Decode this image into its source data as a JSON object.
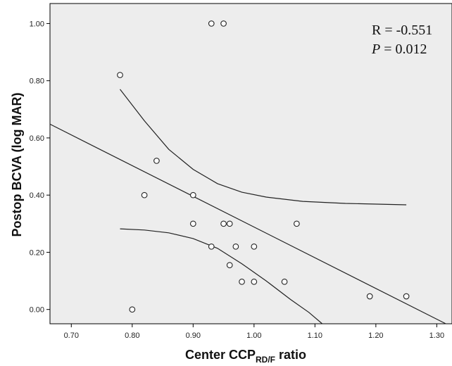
{
  "chart_data": {
    "type": "scatter",
    "title": "",
    "xlabel_main": "Center CCP",
    "xlabel_sub": "RD/F",
    "xlabel_tail": " ratio",
    "ylabel": "Postop BCVA (log MAR)",
    "xlim": [
      0.665,
      1.325
    ],
    "ylim": [
      -0.05,
      1.07
    ],
    "xticks": [
      0.7,
      0.8,
      0.9,
      1.0,
      1.1,
      1.2,
      1.3
    ],
    "xtick_labels": [
      "0.70",
      "0.80",
      "0.90",
      "1.00",
      "1.10",
      "1.20",
      "1.30"
    ],
    "yticks": [
      0.0,
      0.2,
      0.4,
      0.6,
      0.8,
      1.0
    ],
    "ytick_labels": [
      "0.00",
      "0.20",
      "0.40",
      "0.60",
      "0.80",
      "1.00"
    ],
    "grid": false,
    "background": "#ededed",
    "annotation": {
      "r_label": "R",
      "r_value": " = -0.551",
      "p_label": "P",
      "p_value": " = 0.012"
    },
    "points": [
      {
        "x": 0.93,
        "y": 1.0
      },
      {
        "x": 0.95,
        "y": 1.0
      },
      {
        "x": 0.78,
        "y": 0.82
      },
      {
        "x": 0.84,
        "y": 0.52
      },
      {
        "x": 0.82,
        "y": 0.4
      },
      {
        "x": 0.9,
        "y": 0.4
      },
      {
        "x": 0.9,
        "y": 0.3
      },
      {
        "x": 0.95,
        "y": 0.3
      },
      {
        "x": 0.96,
        "y": 0.3
      },
      {
        "x": 1.07,
        "y": 0.3
      },
      {
        "x": 0.93,
        "y": 0.22
      },
      {
        "x": 0.97,
        "y": 0.22
      },
      {
        "x": 1.0,
        "y": 0.22
      },
      {
        "x": 0.96,
        "y": 0.155
      },
      {
        "x": 0.98,
        "y": 0.097
      },
      {
        "x": 1.0,
        "y": 0.097
      },
      {
        "x": 1.05,
        "y": 0.097
      },
      {
        "x": 1.19,
        "y": 0.046
      },
      {
        "x": 1.25,
        "y": 0.046
      },
      {
        "x": 0.8,
        "y": 0.0
      }
    ],
    "fit_line": [
      {
        "x": 0.665,
        "y": 0.648
      },
      {
        "x": 1.315,
        "y": -0.05
      }
    ],
    "ci_upper": [
      {
        "x": 0.78,
        "y": 0.77
      },
      {
        "x": 0.82,
        "y": 0.66
      },
      {
        "x": 0.86,
        "y": 0.56
      },
      {
        "x": 0.9,
        "y": 0.49
      },
      {
        "x": 0.94,
        "y": 0.44
      },
      {
        "x": 0.98,
        "y": 0.41
      },
      {
        "x": 1.02,
        "y": 0.393
      },
      {
        "x": 1.08,
        "y": 0.378
      },
      {
        "x": 1.15,
        "y": 0.371
      },
      {
        "x": 1.25,
        "y": 0.366
      }
    ],
    "ci_lower": [
      {
        "x": 0.78,
        "y": 0.282
      },
      {
        "x": 0.82,
        "y": 0.278
      },
      {
        "x": 0.86,
        "y": 0.268
      },
      {
        "x": 0.9,
        "y": 0.248
      },
      {
        "x": 0.94,
        "y": 0.214
      },
      {
        "x": 0.98,
        "y": 0.16
      },
      {
        "x": 1.02,
        "y": 0.1
      },
      {
        "x": 1.06,
        "y": 0.035
      },
      {
        "x": 1.09,
        "y": -0.01
      },
      {
        "x": 1.112,
        "y": -0.05
      }
    ],
    "colors": {
      "marker_stroke": "#222222",
      "line": "#222222",
      "axis": "#000000"
    }
  }
}
